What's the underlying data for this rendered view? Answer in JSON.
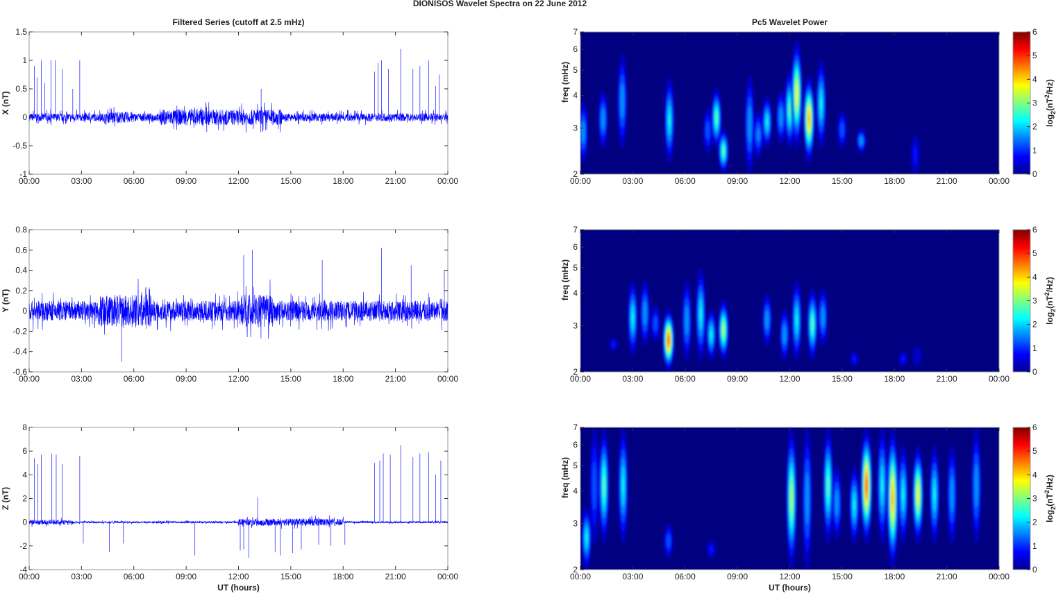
{
  "title": "DIONISOS Wavelet Spectra on 22 June      2012",
  "chart_data": [
    {
      "type": "line",
      "title": "Filtered Series (cutoff at 2.5 mHz)",
      "ylabel": "X (nT)",
      "xlabel": "",
      "xlim": [
        0,
        24
      ],
      "ylim": [
        -1,
        1.5
      ],
      "yticks": [
        "-1",
        "-0.5",
        "0",
        "0.5",
        "1",
        "1.5"
      ],
      "ytick_values": [
        -1,
        -0.5,
        0,
        0.5,
        1,
        1.5
      ],
      "noise_amplitude": 0.07,
      "enhanced_intervals": [
        [
          7.5,
          14.5,
          0.14
        ],
        [
          4.5,
          6,
          0.1
        ]
      ],
      "spikes": [
        [
          0.3,
          0.9
        ],
        [
          0.45,
          0.7
        ],
        [
          0.7,
          1.0
        ],
        [
          0.9,
          0.6
        ],
        [
          1.25,
          1.0
        ],
        [
          1.5,
          1.0
        ],
        [
          1.9,
          0.85
        ],
        [
          2.5,
          0.5
        ],
        [
          2.9,
          1.0
        ],
        [
          13.3,
          0.5
        ],
        [
          19.8,
          0.8
        ],
        [
          20.0,
          0.95
        ],
        [
          20.2,
          1.0
        ],
        [
          20.6,
          0.85
        ],
        [
          21.3,
          1.2
        ],
        [
          22.0,
          0.85
        ],
        [
          22.4,
          0.9
        ],
        [
          22.9,
          1.0
        ],
        [
          23.3,
          0.55
        ],
        [
          23.5,
          0.75
        ]
      ]
    },
    {
      "type": "line",
      "title": "",
      "ylabel": "Y (nT)",
      "xlabel": "",
      "xlim": [
        0,
        24
      ],
      "ylim": [
        -0.6,
        0.8
      ],
      "yticks": [
        "-0.6",
        "-0.4",
        "-0.2",
        "0",
        "0.2",
        "0.4",
        "0.6",
        "0.8"
      ],
      "ytick_values": [
        -0.6,
        -0.4,
        -0.2,
        0,
        0.2,
        0.4,
        0.6,
        0.8
      ],
      "noise_amplitude": 0.1,
      "enhanced_intervals": [
        [
          4,
          7,
          0.16
        ],
        [
          12,
          14,
          0.16
        ]
      ],
      "spikes": [
        [
          5.3,
          -0.5
        ],
        [
          12.3,
          0.55
        ],
        [
          12.8,
          0.6
        ],
        [
          16.8,
          0.5
        ],
        [
          20.2,
          0.62
        ],
        [
          21.9,
          0.45
        ],
        [
          23.8,
          0.4
        ]
      ]
    },
    {
      "type": "line",
      "title": "",
      "ylabel": "Z (nT)",
      "xlabel": "UT (hours)",
      "xlim": [
        0,
        24
      ],
      "ylim": [
        -4,
        8
      ],
      "yticks": [
        "-4",
        "-2",
        "0",
        "2",
        "4",
        "6",
        "8"
      ],
      "ytick_values": [
        -4,
        -2,
        0,
        2,
        4,
        6,
        8
      ],
      "noise_amplitude": 0.08,
      "enhanced_intervals": [
        [
          12,
          18,
          0.3
        ],
        [
          0,
          2.5,
          0.2
        ]
      ],
      "spikes": [
        [
          0.3,
          5.4
        ],
        [
          0.5,
          4.9
        ],
        [
          0.7,
          5.7
        ],
        [
          1.3,
          5.8
        ],
        [
          1.55,
          5.7
        ],
        [
          1.9,
          4.9
        ],
        [
          2.9,
          5.6
        ],
        [
          3.1,
          -1.8
        ],
        [
          4.6,
          -2.5
        ],
        [
          5.4,
          -1.8
        ],
        [
          9.5,
          -2.8
        ],
        [
          12.1,
          -2.4
        ],
        [
          12.3,
          -2.3
        ],
        [
          12.6,
          -3.0
        ],
        [
          13.1,
          2.1
        ],
        [
          14.1,
          -2.5
        ],
        [
          14.4,
          -2.8
        ],
        [
          15.1,
          -2.6
        ],
        [
          15.6,
          -2.3
        ],
        [
          16.6,
          -1.9
        ],
        [
          17.3,
          -2.0
        ],
        [
          18.1,
          -1.9
        ],
        [
          19.8,
          5.0
        ],
        [
          20.1,
          5.2
        ],
        [
          20.3,
          5.8
        ],
        [
          20.7,
          5.7
        ],
        [
          21.3,
          6.5
        ],
        [
          22.0,
          5.5
        ],
        [
          22.4,
          5.8
        ],
        [
          22.9,
          5.9
        ],
        [
          23.3,
          4.0
        ],
        [
          23.6,
          5.2
        ]
      ]
    },
    {
      "type": "heatmap",
      "title": "Pc5 Wavelet Power",
      "ylabel": "freq (mHz)",
      "xlabel": "",
      "xlim": [
        0,
        24
      ],
      "ylim": [
        2,
        7
      ],
      "yscale": "log",
      "yticks": [
        "2",
        "3",
        "4",
        "5",
        "6",
        "7"
      ],
      "colorbar": {
        "label": "log2(nT2/Hz)",
        "range": [
          0,
          6
        ],
        "ticks": [
          "0",
          "1",
          "2",
          "3",
          "4",
          "5",
          "6"
        ],
        "colormap": "jet"
      },
      "events": [
        [
          0.16,
          2.2,
          3.8,
          2
        ],
        [
          1.3,
          2.5,
          4.2,
          2
        ],
        [
          2.4,
          2.5,
          5.8,
          2
        ],
        [
          5.1,
          2.2,
          4.7,
          2.5
        ],
        [
          7.3,
          2.4,
          3.6,
          1.5
        ],
        [
          7.8,
          2.5,
          4.3,
          3
        ],
        [
          8.2,
          2.0,
          3.0,
          3
        ],
        [
          9.7,
          2.0,
          4.8,
          2
        ],
        [
          10.2,
          2.3,
          3.5,
          1.8
        ],
        [
          10.7,
          2.5,
          4.0,
          2.5
        ],
        [
          11.5,
          2.6,
          4.2,
          2
        ],
        [
          12.0,
          2.5,
          5.0,
          3
        ],
        [
          12.4,
          2.5,
          6.5,
          4
        ],
        [
          13.1,
          2.2,
          4.8,
          4.5
        ],
        [
          13.8,
          2.5,
          5.5,
          2.5
        ],
        [
          15.0,
          2.5,
          3.5,
          1.5
        ],
        [
          16.1,
          2.4,
          3.0,
          2
        ],
        [
          19.2,
          2.0,
          2.8,
          1
        ]
      ]
    },
    {
      "type": "heatmap",
      "title": "",
      "ylabel": "freq (mHz)",
      "xlabel": "",
      "xlim": [
        0,
        24
      ],
      "ylim": [
        2,
        7
      ],
      "yscale": "log",
      "yticks": [
        "2",
        "3",
        "4",
        "5",
        "6",
        "7"
      ],
      "colorbar": {
        "label": "log2(nT2/Hz)",
        "range": [
          0,
          6
        ],
        "ticks": [
          "0",
          "1",
          "2",
          "3",
          "4",
          "5",
          "6"
        ],
        "colormap": "jet"
      },
      "events": [
        [
          1.9,
          2.4,
          2.7,
          1
        ],
        [
          3.0,
          2.3,
          4.5,
          2.5
        ],
        [
          3.7,
          2.5,
          4.5,
          2
        ],
        [
          4.3,
          2.6,
          3.6,
          1.5
        ],
        [
          5.05,
          2.0,
          3.5,
          5
        ],
        [
          6.1,
          2.2,
          4.5,
          2
        ],
        [
          6.9,
          2.2,
          5.0,
          2.5
        ],
        [
          7.5,
          2.2,
          3.5,
          2.5
        ],
        [
          8.2,
          2.2,
          3.8,
          3.5
        ],
        [
          10.7,
          2.5,
          4.0,
          2
        ],
        [
          11.7,
          2.2,
          3.5,
          2
        ],
        [
          12.4,
          2.2,
          4.5,
          2.5
        ],
        [
          13.3,
          2.2,
          4.2,
          3
        ],
        [
          13.9,
          2.5,
          4.2,
          2
        ],
        [
          15.7,
          2.1,
          2.4,
          1
        ],
        [
          18.5,
          2.1,
          2.4,
          1
        ],
        [
          19.3,
          2.1,
          2.5,
          0.8
        ]
      ]
    },
    {
      "type": "heatmap",
      "title": "",
      "ylabel": "freq (mHz)",
      "xlabel": "UT (hours)",
      "xlim": [
        0,
        24
      ],
      "ylim": [
        2,
        7
      ],
      "yscale": "log",
      "yticks": [
        "2",
        "3",
        "4",
        "5",
        "6",
        "7"
      ],
      "colorbar": {
        "label": "log2(nT2/Hz)",
        "range": [
          0,
          6
        ],
        "ticks": [
          "0",
          "1",
          "2",
          "3",
          "4",
          "5",
          "6"
        ],
        "colormap": "jet"
      },
      "events": [
        [
          0.35,
          2.0,
          3.5,
          2.5
        ],
        [
          0.8,
          2.5,
          7,
          1.5
        ],
        [
          1.35,
          2.5,
          7,
          3
        ],
        [
          2.45,
          2.5,
          7,
          2.5
        ],
        [
          5.05,
          2.2,
          3.0,
          1.5
        ],
        [
          7.5,
          2.2,
          2.6,
          1
        ],
        [
          12.1,
          2.0,
          7,
          3.5
        ],
        [
          13.0,
          2.0,
          7,
          2
        ],
        [
          14.2,
          2.5,
          7,
          3
        ],
        [
          14.7,
          2.6,
          5,
          2
        ],
        [
          15.7,
          2.5,
          5,
          2.5
        ],
        [
          16.4,
          2.5,
          7,
          5
        ],
        [
          17.3,
          2.5,
          7,
          2.5
        ],
        [
          17.9,
          2.0,
          7,
          4.5
        ],
        [
          18.5,
          2.5,
          6,
          2.5
        ],
        [
          19.35,
          2.5,
          6,
          4
        ],
        [
          20.3,
          2.5,
          6,
          2.5
        ],
        [
          21.3,
          2.5,
          6,
          2
        ],
        [
          22.7,
          2.5,
          7,
          2
        ]
      ]
    }
  ],
  "time_ticks": [
    "00:00",
    "03:00",
    "06:00",
    "09:00",
    "12:00",
    "15:00",
    "18:00",
    "21:00",
    "00:00"
  ]
}
